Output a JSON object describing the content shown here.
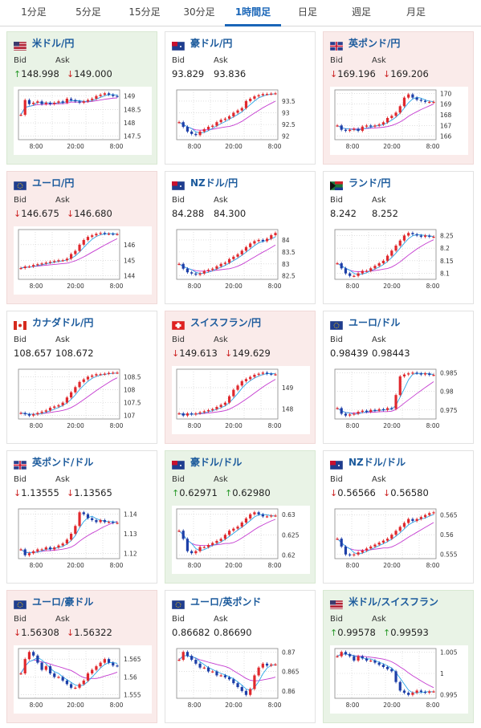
{
  "tabs": [
    {
      "label": "1分足",
      "active": false
    },
    {
      "label": "5分足",
      "active": false
    },
    {
      "label": "15分足",
      "active": false
    },
    {
      "label": "30分足",
      "active": false
    },
    {
      "label": "1時間足",
      "active": true
    },
    {
      "label": "日足",
      "active": false
    },
    {
      "label": "週足",
      "active": false
    },
    {
      "label": "月足",
      "active": false
    }
  ],
  "colors": {
    "up_bg": "#e9f3e6",
    "down_bg": "#faebea",
    "link": "#1b5a9c",
    "up_arrow": "#2a9a2a",
    "down_arrow": "#cc2222",
    "bull_candle": "#e0282d",
    "bear_candle": "#1d3fa8",
    "fast_ma": "#2aa7e8",
    "slow_ma": "#c43ad0"
  },
  "labels": {
    "bid": "Bid",
    "ask": "Ask"
  },
  "pairs": [
    {
      "name": "米ドル/円",
      "flag": "us-jp-flag-icon",
      "state": "up",
      "bid": "148.998",
      "ask": "149.000",
      "bid_dir": "up",
      "ask_dir": "down",
      "yticks": [
        "149",
        "148.5",
        "148",
        "147.5"
      ],
      "xticks": [
        "8:00",
        "20:00",
        "8:00"
      ],
      "series": [
        148.3,
        148.85,
        148.7,
        148.75,
        148.8,
        148.7,
        148.75,
        148.7,
        148.75,
        148.8,
        148.75,
        148.9,
        148.85,
        148.8,
        148.75,
        148.8,
        148.85,
        148.9,
        149.0,
        149.05,
        149.1,
        149.05,
        149.0,
        148.99
      ]
    },
    {
      "name": "豪ドル/円",
      "flag": "au-jp-flag-icon",
      "state": "none",
      "bid": "93.829",
      "ask": "93.836",
      "bid_dir": "none",
      "ask_dir": "none",
      "yticks": [
        "93.5",
        "93",
        "92.5",
        "92"
      ],
      "xticks": [
        "8:00",
        "20:00",
        "8:00"
      ],
      "series": [
        92.6,
        92.4,
        92.2,
        92.1,
        92.05,
        92.2,
        92.3,
        92.4,
        92.45,
        92.6,
        92.7,
        92.75,
        92.85,
        93.0,
        93.1,
        93.2,
        93.5,
        93.6,
        93.7,
        93.75,
        93.8,
        93.8,
        93.82,
        93.83
      ]
    },
    {
      "name": "英ポンド/円",
      "flag": "gb-jp-flag-icon",
      "state": "down",
      "bid": "169.196",
      "ask": "169.206",
      "bid_dir": "down",
      "ask_dir": "down",
      "yticks": [
        "170",
        "169",
        "168",
        "167",
        "166"
      ],
      "xticks": [
        "8:00",
        "20:00",
        "8:00"
      ],
      "series": [
        167.0,
        166.6,
        166.5,
        166.6,
        166.7,
        166.5,
        166.9,
        167.0,
        166.9,
        167.0,
        167.1,
        167.3,
        167.7,
        167.9,
        168.2,
        168.8,
        169.6,
        169.9,
        169.6,
        169.4,
        169.3,
        169.2,
        169.2,
        169.2
      ]
    },
    {
      "name": "ユーロ/円",
      "flag": "eu-jp-flag-icon",
      "state": "down",
      "bid": "146.675",
      "ask": "146.680",
      "bid_dir": "down",
      "ask_dir": "down",
      "yticks": [
        "146",
        "145",
        "144"
      ],
      "xticks": [
        "8:00",
        "20:00",
        "8:00"
      ],
      "series": [
        144.5,
        144.6,
        144.6,
        144.7,
        144.75,
        144.8,
        144.85,
        144.9,
        144.95,
        145.0,
        145.0,
        145.1,
        145.4,
        145.6,
        146.0,
        146.3,
        146.5,
        146.6,
        146.7,
        146.75,
        146.7,
        146.7,
        146.68,
        146.68
      ]
    },
    {
      "name": "NZドル/円",
      "flag": "nz-jp-flag-icon",
      "state": "none",
      "bid": "84.288",
      "ask": "84.300",
      "bid_dir": "none",
      "ask_dir": "none",
      "yticks": [
        "84",
        "83.5",
        "83",
        "82.5"
      ],
      "xticks": [
        "8:00",
        "20:00",
        "8:00"
      ],
      "series": [
        83.0,
        82.8,
        82.65,
        82.6,
        82.55,
        82.6,
        82.7,
        82.75,
        82.8,
        82.9,
        83.0,
        83.05,
        83.2,
        83.3,
        83.4,
        83.55,
        83.7,
        83.85,
        83.95,
        84.0,
        83.95,
        84.05,
        84.2,
        84.29
      ]
    },
    {
      "name": "ランド/円",
      "flag": "za-jp-flag-icon",
      "state": "none",
      "bid": "8.242",
      "ask": "8.252",
      "bid_dir": "none",
      "ask_dir": "none",
      "yticks": [
        "8.25",
        "8.2",
        "8.15",
        "8.1"
      ],
      "xticks": [
        "8:00",
        "20:00",
        "8:00"
      ],
      "series": [
        8.14,
        8.12,
        8.1,
        8.09,
        8.09,
        8.1,
        8.11,
        8.11,
        8.12,
        8.13,
        8.14,
        8.15,
        8.17,
        8.19,
        8.21,
        8.23,
        8.25,
        8.26,
        8.255,
        8.25,
        8.245,
        8.25,
        8.245,
        8.245
      ]
    },
    {
      "name": "カナダドル/円",
      "flag": "ca-jp-flag-icon",
      "state": "none",
      "bid": "108.657",
      "ask": "108.672",
      "bid_dir": "none",
      "ask_dir": "none",
      "yticks": [
        "108.5",
        "108",
        "107.5",
        "107"
      ],
      "xticks": [
        "8:00",
        "20:00",
        "8:00"
      ],
      "series": [
        107.1,
        107.05,
        107.0,
        107.05,
        107.1,
        107.15,
        107.2,
        107.3,
        107.35,
        107.4,
        107.5,
        107.7,
        107.9,
        108.1,
        108.3,
        108.4,
        108.5,
        108.55,
        108.6,
        108.6,
        108.62,
        108.65,
        108.66,
        108.66
      ]
    },
    {
      "name": "スイスフラン/円",
      "flag": "ch-jp-flag-icon",
      "state": "down",
      "bid": "149.613",
      "ask": "149.629",
      "bid_dir": "down",
      "ask_dir": "down",
      "yticks": [
        "149",
        "148"
      ],
      "xticks": [
        "8:00",
        "20:00",
        "8:00"
      ],
      "series": [
        147.8,
        147.7,
        147.8,
        147.75,
        147.8,
        147.85,
        147.9,
        147.95,
        148.0,
        148.1,
        148.2,
        148.3,
        148.6,
        148.9,
        149.1,
        149.3,
        149.4,
        149.5,
        149.6,
        149.65,
        149.7,
        149.65,
        149.62,
        149.62
      ]
    },
    {
      "name": "ユーロ/ドル",
      "flag": "eu-us-flag-icon",
      "state": "none",
      "bid": "0.98439",
      "ask": "0.98443",
      "bid_dir": "none",
      "ask_dir": "none",
      "yticks": [
        "0.985",
        "0.98",
        "0.975"
      ],
      "xticks": [
        "8:00",
        "20:00",
        "8:00"
      ],
      "series": [
        0.9755,
        0.974,
        0.9735,
        0.9738,
        0.974,
        0.9745,
        0.9748,
        0.9745,
        0.975,
        0.9748,
        0.9752,
        0.975,
        0.9755,
        0.9753,
        0.979,
        0.984,
        0.9845,
        0.9848,
        0.985,
        0.9848,
        0.9845,
        0.9848,
        0.9844,
        0.9844
      ]
    },
    {
      "name": "英ポンド/ドル",
      "flag": "gb-us-flag-icon",
      "state": "none",
      "bid": "1.13555",
      "ask": "1.13565",
      "bid_dir": "down",
      "ask_dir": "down",
      "yticks": [
        "1.14",
        "1.13",
        "1.12"
      ],
      "xticks": [
        "8:00",
        "20:00",
        "8:00"
      ],
      "series": [
        1.122,
        1.119,
        1.12,
        1.121,
        1.122,
        1.122,
        1.123,
        1.122,
        1.123,
        1.124,
        1.125,
        1.127,
        1.13,
        1.134,
        1.141,
        1.14,
        1.138,
        1.137,
        1.136,
        1.137,
        1.136,
        1.136,
        1.1356,
        1.1356
      ]
    },
    {
      "name": "豪ドル/ドル",
      "flag": "au-us-flag-icon",
      "state": "up",
      "bid": "0.62971",
      "ask": "0.62980",
      "bid_dir": "up",
      "ask_dir": "up",
      "yticks": [
        "0.63",
        "0.625",
        "0.62"
      ],
      "xticks": [
        "8:00",
        "20:00",
        "8:00"
      ],
      "series": [
        0.626,
        0.624,
        0.621,
        0.6205,
        0.621,
        0.622,
        0.622,
        0.6225,
        0.623,
        0.6235,
        0.624,
        0.625,
        0.626,
        0.6265,
        0.627,
        0.628,
        0.629,
        0.63,
        0.6305,
        0.63,
        0.6295,
        0.6295,
        0.6297,
        0.6297
      ]
    },
    {
      "name": "NZドル/ドル",
      "flag": "nz-us-flag-icon",
      "state": "none",
      "bid": "0.56566",
      "ask": "0.56580",
      "bid_dir": "down",
      "ask_dir": "down",
      "yticks": [
        "0.565",
        "0.56",
        "0.555"
      ],
      "xticks": [
        "8:00",
        "20:00",
        "8:00"
      ],
      "series": [
        0.559,
        0.557,
        0.555,
        0.5548,
        0.555,
        0.5555,
        0.556,
        0.5565,
        0.557,
        0.5575,
        0.558,
        0.5585,
        0.559,
        0.56,
        0.561,
        0.562,
        0.563,
        0.564,
        0.5635,
        0.564,
        0.5645,
        0.565,
        0.5655,
        0.5657
      ]
    },
    {
      "name": "ユーロ/豪ドル",
      "flag": "eu-au-flag-icon",
      "state": "down",
      "bid": "1.56308",
      "ask": "1.56322",
      "bid_dir": "down",
      "ask_dir": "down",
      "yticks": [
        "1.565",
        "1.56",
        "1.555"
      ],
      "xticks": [
        "8:00",
        "20:00",
        "8:00"
      ],
      "series": [
        1.561,
        1.565,
        1.567,
        1.566,
        1.564,
        1.562,
        1.563,
        1.561,
        1.56,
        1.56,
        1.559,
        1.558,
        1.557,
        1.557,
        1.558,
        1.559,
        1.561,
        1.562,
        1.563,
        1.564,
        1.565,
        1.564,
        1.5632,
        1.5631
      ]
    },
    {
      "name": "ユーロ/英ポンド",
      "flag": "eu-gb-flag-icon",
      "state": "none",
      "bid": "0.86682",
      "ask": "0.86690",
      "bid_dir": "none",
      "ask_dir": "none",
      "yticks": [
        "0.87",
        "0.865",
        "0.86"
      ],
      "xticks": [
        "8:00",
        "20:00",
        "8:00"
      ],
      "series": [
        0.868,
        0.87,
        0.869,
        0.868,
        0.867,
        0.866,
        0.866,
        0.865,
        0.865,
        0.864,
        0.864,
        0.8635,
        0.863,
        0.862,
        0.861,
        0.86,
        0.859,
        0.8605,
        0.864,
        0.866,
        0.867,
        0.8665,
        0.8668,
        0.8668
      ]
    },
    {
      "name": "米ドル/スイスフラン",
      "flag": "us-ch-flag-icon",
      "state": "up",
      "bid": "0.99578",
      "ask": "0.99593",
      "bid_dir": "up",
      "ask_dir": "up",
      "yticks": [
        "1.005",
        "1",
        "0.995"
      ],
      "xticks": [
        "8:00",
        "20:00",
        "8:00"
      ],
      "series": [
        1.004,
        1.005,
        1.0045,
        1.004,
        1.003,
        1.004,
        1.0035,
        1.003,
        1.003,
        1.0025,
        1.002,
        1.0015,
        1.001,
        1.0005,
        0.998,
        0.996,
        0.9955,
        0.995,
        0.9955,
        0.996,
        0.9957,
        0.9955,
        0.9958,
        0.9958
      ]
    }
  ]
}
